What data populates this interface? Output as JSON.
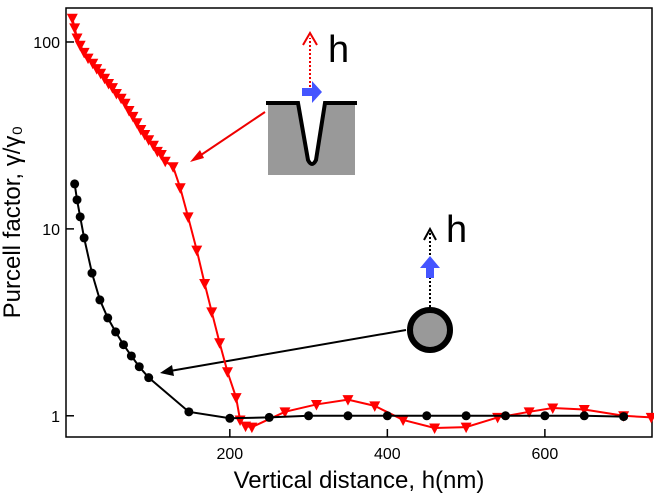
{
  "chart_data": {
    "type": "line",
    "xlabel": "Vertical distance, h(nm)",
    "ylabel": "Purcell factor, γ/γ₀",
    "annotations": [
      "h",
      "h"
    ],
    "xlim": [
      -8,
      736
    ],
    "xticks": [
      200,
      400,
      600
    ],
    "ylim": [
      0.77,
      152
    ],
    "yticks": [
      1,
      10,
      100
    ],
    "yscale": "log",
    "series": [
      {
        "color": "#ff0000",
        "marker": "triangle-down",
        "x": [
          0,
          3,
          6,
          10,
          15,
          20,
          26,
          31,
          36,
          41,
          46,
          51,
          56,
          62,
          67,
          72,
          77,
          82,
          87,
          92,
          97,
          103,
          108,
          113,
          118,
          128,
          137,
          147,
          158,
          168,
          177,
          187,
          197,
          208,
          213,
          220,
          228,
          270,
          310,
          350,
          384,
          420,
          460,
          500,
          540,
          580,
          610,
          650,
          700,
          735
        ],
        "values": [
          134,
          119,
          105,
          96,
          88,
          82,
          77,
          72,
          68,
          64,
          60,
          57,
          53,
          50,
          47,
          43,
          40,
          37,
          34,
          32,
          30,
          28,
          26,
          25,
          23,
          21.5,
          16.6,
          11.6,
          7.7,
          5.1,
          3.6,
          2.46,
          1.72,
          1.25,
          0.95,
          0.88,
          0.87,
          1.05,
          1.15,
          1.22,
          1.13,
          0.95,
          0.86,
          0.87,
          0.98,
          1.05,
          1.1,
          1.08,
          1.0,
          0.98
        ]
      },
      {
        "color": "#000000",
        "marker": "circle",
        "x": [
          3,
          6,
          10,
          15,
          25,
          35,
          45,
          55,
          65,
          75,
          85,
          97,
          148,
          200,
          250,
          300,
          350,
          400,
          450,
          500,
          550,
          600,
          650,
          700
        ],
        "values": [
          17.4,
          14.3,
          11.6,
          8.95,
          5.8,
          4.17,
          3.34,
          2.81,
          2.4,
          2.09,
          1.83,
          1.6,
          1.05,
          0.97,
          0.98,
          1.0,
          1.0,
          1.0,
          1.0,
          1.0,
          1.0,
          1.0,
          1.0,
          0.99
        ]
      }
    ]
  }
}
